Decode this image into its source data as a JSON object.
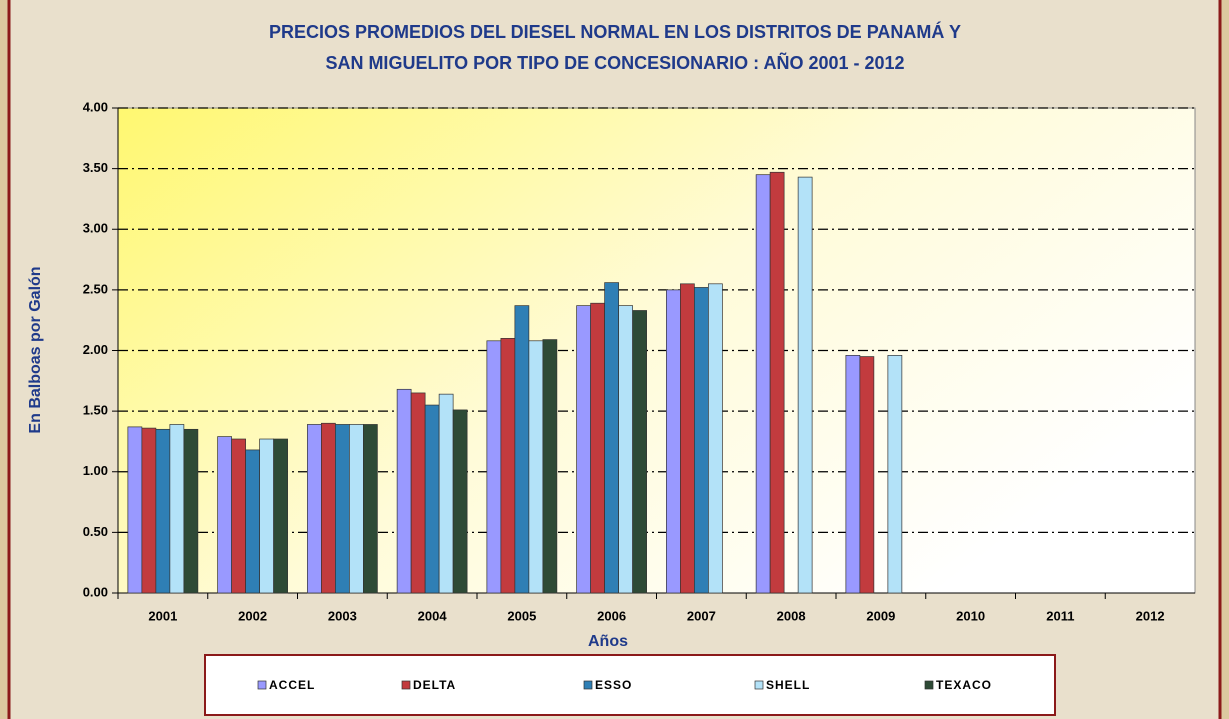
{
  "chart_data": {
    "type": "bar",
    "title": [
      "PRECIOS PROMEDIOS DEL DIESEL NORMAL EN LOS DISTRITOS DE PANAMÁ Y",
      "SAN MIGUELITO POR TIPO DE CONCESIONARIO : AÑO 2001 - 2012"
    ],
    "xlabel": "Años",
    "ylabel": "En Balboas por Galón",
    "categories": [
      "2001",
      "2002",
      "2003",
      "2004",
      "2005",
      "2006",
      "2007",
      "2008",
      "2009",
      "2010",
      "2011",
      "2012"
    ],
    "series": [
      {
        "name": "ACCEL",
        "color": "#9999ff",
        "values": [
          1.37,
          1.29,
          1.39,
          1.68,
          2.08,
          2.37,
          2.5,
          3.45,
          1.96,
          null,
          null,
          null
        ]
      },
      {
        "name": "DELTA",
        "color": "#c23b3e",
        "values": [
          1.36,
          1.27,
          1.4,
          1.65,
          2.1,
          2.39,
          2.55,
          3.47,
          1.95,
          null,
          null,
          null
        ]
      },
      {
        "name": "ESSO",
        "color": "#2f7fb5",
        "values": [
          1.35,
          1.18,
          1.39,
          1.55,
          2.37,
          2.56,
          2.52,
          null,
          null,
          null,
          null,
          null
        ]
      },
      {
        "name": "SHELL",
        "color": "#b3e2f8",
        "values": [
          1.39,
          1.27,
          1.39,
          1.64,
          2.08,
          2.37,
          2.55,
          3.43,
          1.96,
          null,
          null,
          null
        ]
      },
      {
        "name": "TEXACO",
        "color": "#2e4a36",
        "values": [
          1.35,
          1.27,
          1.39,
          1.51,
          2.09,
          2.33,
          null,
          null,
          null,
          null,
          null,
          null
        ]
      }
    ],
    "ylim": [
      0,
      4
    ],
    "yticks": [
      {
        "value": 0,
        "label": "0.00"
      },
      {
        "value": 0.5,
        "label": "0.50"
      },
      {
        "value": 1,
        "label": "1.00"
      },
      {
        "value": 1.5,
        "label": "1.50"
      },
      {
        "value": 2,
        "label": "2.00"
      },
      {
        "value": 2.5,
        "label": "2.50"
      },
      {
        "value": 3,
        "label": "3.00"
      },
      {
        "value": 3.5,
        "label": "3.50"
      },
      {
        "value": 4,
        "label": "4.00"
      }
    ],
    "grid": true
  }
}
